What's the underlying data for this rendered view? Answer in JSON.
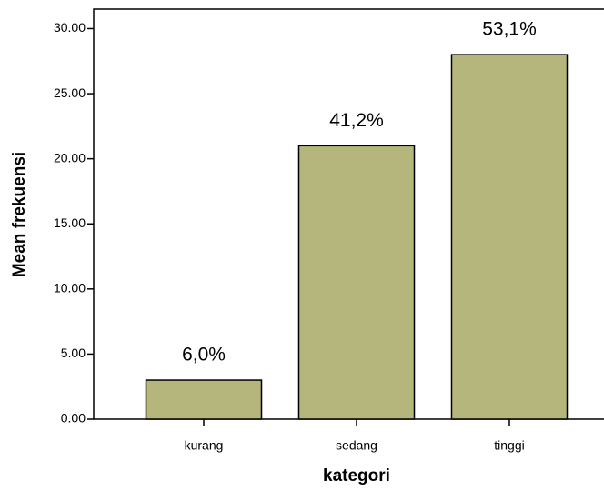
{
  "chart_data": {
    "type": "bar",
    "x_label": "kategori",
    "y_label": "Mean frekuensi",
    "categories": [
      "kurang",
      "sedang",
      "tinggi"
    ],
    "values": [
      3,
      21,
      28
    ],
    "annotations": [
      "6,0%",
      "41,2%",
      "53,1%"
    ],
    "color": "#b5b67c",
    "ylim": [
      0,
      31.5
    ],
    "yticks": [
      {
        "value": 0,
        "label": "0.00"
      },
      {
        "value": 5,
        "label": "5.00"
      },
      {
        "value": 10,
        "label": "10.00"
      },
      {
        "value": 15,
        "label": "15.00"
      },
      {
        "value": 20,
        "label": "20.00"
      },
      {
        "value": 25,
        "label": "25.00"
      },
      {
        "value": 30,
        "label": "30.00"
      }
    ],
    "grid": false
  }
}
